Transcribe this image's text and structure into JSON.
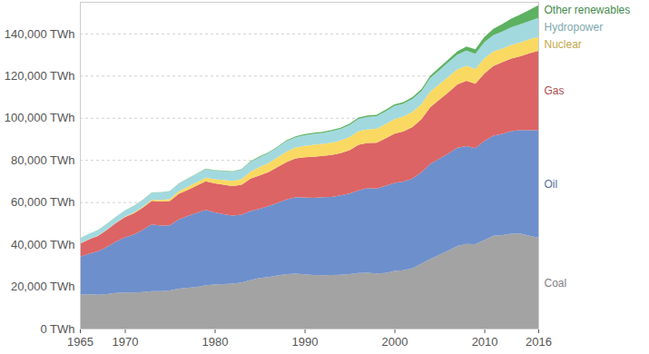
{
  "chart_data": {
    "type": "area",
    "stacked": true,
    "grid": true,
    "x": [
      1965,
      1966,
      1967,
      1968,
      1969,
      1970,
      1971,
      1972,
      1973,
      1974,
      1975,
      1976,
      1977,
      1978,
      1979,
      1980,
      1981,
      1982,
      1983,
      1984,
      1985,
      1986,
      1987,
      1988,
      1989,
      1990,
      1991,
      1992,
      1993,
      1994,
      1995,
      1996,
      1997,
      1998,
      1999,
      2000,
      2001,
      2002,
      2003,
      2004,
      2005,
      2006,
      2007,
      2008,
      2009,
      2010,
      2011,
      2012,
      2013,
      2014,
      2015,
      2016
    ],
    "xlim": [
      1965,
      2016
    ],
    "xticks": [
      1965,
      1970,
      1980,
      1990,
      2000,
      2010,
      2016
    ],
    "ylim": [
      0,
      155000
    ],
    "yticks": [
      {
        "value": 0,
        "label": "0 TWh"
      },
      {
        "value": 20000,
        "label": "20,000 TWh"
      },
      {
        "value": 40000,
        "label": "40,000 TWh"
      },
      {
        "value": 60000,
        "label": "60,000 TWh"
      },
      {
        "value": 80000,
        "label": "80,000 TWh"
      },
      {
        "value": 100000,
        "label": "100,000 TWh"
      },
      {
        "value": 120000,
        "label": "120,000 TWh"
      },
      {
        "value": 140000,
        "label": "140,000 TWh"
      }
    ],
    "series": [
      {
        "name": "Coal",
        "color": "#a3a3a3",
        "values": [
          16000,
          16200,
          16000,
          16400,
          16900,
          17100,
          17100,
          17300,
          17800,
          17800,
          18100,
          18900,
          19400,
          19700,
          20600,
          20900,
          21100,
          21300,
          21900,
          23000,
          24000,
          24400,
          25200,
          25800,
          26100,
          25700,
          25400,
          25300,
          25400,
          25500,
          25800,
          26400,
          26500,
          26200,
          26400,
          27300,
          27700,
          28600,
          30800,
          33000,
          35000,
          37000,
          39200,
          40200,
          40000,
          42000,
          44000,
          44300,
          45000,
          45100,
          44000,
          43200
        ]
      },
      {
        "name": "Oil",
        "color": "#6d8fcc",
        "values": [
          18000,
          19300,
          20600,
          22400,
          24300,
          26200,
          27500,
          29500,
          31600,
          31100,
          30900,
          32900,
          34000,
          35200,
          35700,
          34200,
          33100,
          32300,
          32100,
          32800,
          32800,
          33700,
          34400,
          35500,
          36200,
          36500,
          36600,
          37000,
          37000,
          37700,
          38200,
          39200,
          40100,
          40200,
          41300,
          41800,
          42000,
          42500,
          43400,
          45100,
          45600,
          46000,
          46600,
          46300,
          45600,
          47000,
          47500,
          48100,
          48600,
          49100,
          50100,
          51000
        ]
      },
      {
        "name": "Gas",
        "color": "#dc6464",
        "values": [
          6300,
          6800,
          7300,
          8000,
          8800,
          9500,
          10100,
          10600,
          11200,
          11400,
          11500,
          12100,
          12400,
          12900,
          13600,
          13800,
          14000,
          14000,
          14200,
          15400,
          15900,
          16200,
          17000,
          17700,
          18400,
          19100,
          19500,
          19600,
          19900,
          20000,
          20600,
          21600,
          21500,
          21800,
          22500,
          23400,
          23800,
          24500,
          25200,
          27000,
          28000,
          29000,
          30000,
          31000,
          30500,
          32000,
          33000,
          34000,
          34500,
          35000,
          36500,
          37500
        ]
      },
      {
        "name": "Nuclear",
        "color": "#fad962",
        "values": [
          70,
          100,
          120,
          150,
          180,
          230,
          320,
          430,
          560,
          710,
          1000,
          1180,
          1430,
          1650,
          1710,
          1910,
          2270,
          2450,
          2770,
          3320,
          3970,
          4290,
          4630,
          5000,
          5150,
          5400,
          5650,
          5700,
          5900,
          6050,
          6250,
          6450,
          6400,
          6550,
          6800,
          6900,
          7100,
          7150,
          7050,
          7350,
          7350,
          7450,
          7200,
          7150,
          7050,
          7200,
          6900,
          6400,
          6450,
          6550,
          6600,
          6650
        ]
      },
      {
        "name": "Hydropower",
        "color": "#a2d9df",
        "values": [
          2400,
          2550,
          2600,
          2700,
          2850,
          3000,
          3100,
          3250,
          3300,
          3550,
          3600,
          3650,
          3750,
          3950,
          4100,
          4150,
          4200,
          4300,
          4450,
          4600,
          4650,
          4700,
          4750,
          4900,
          4900,
          5050,
          5200,
          5200,
          5450,
          5500,
          5750,
          5800,
          5900,
          5950,
          6000,
          6150,
          6050,
          6150,
          6150,
          6500,
          6700,
          6900,
          6950,
          7250,
          7250,
          7600,
          7800,
          8150,
          8400,
          8600,
          8650,
          9000
        ]
      },
      {
        "name": "Other renewables",
        "color": "#5cb260",
        "values": [
          50,
          50,
          60,
          60,
          70,
          80,
          90,
          100,
          110,
          120,
          130,
          140,
          150,
          170,
          180,
          200,
          220,
          240,
          280,
          320,
          350,
          380,
          400,
          420,
          460,
          480,
          500,
          520,
          540,
          560,
          580,
          610,
          640,
          680,
          720,
          760,
          800,
          880,
          950,
          1080,
          1200,
          1350,
          1550,
          1850,
          2100,
          2500,
          3000,
          3550,
          4100,
          4650,
          5300,
          6000
        ]
      }
    ]
  }
}
